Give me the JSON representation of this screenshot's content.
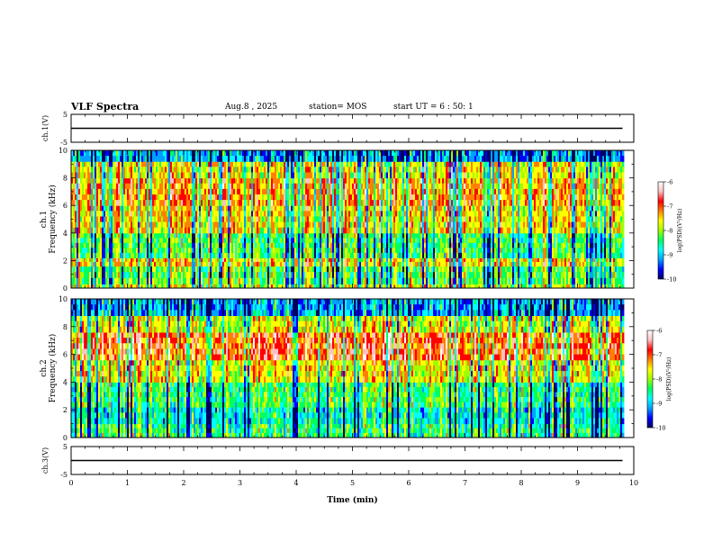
{
  "header": {
    "title": "VLF Spectra",
    "date": "Aug.8 , 2025",
    "station": "station= MOS",
    "start": "start UT = 6 : 50: 1"
  },
  "chart_data": [
    {
      "type": "line",
      "ylabel": "ch.1(V)",
      "ylim": [
        -5,
        5
      ],
      "yticks": [
        5,
        -5
      ],
      "x": [
        0,
        9.8
      ],
      "y": [
        0,
        0
      ],
      "xlim": [
        0,
        10
      ]
    },
    {
      "type": "heatmap",
      "ylabel": "ch.1 Frequency (kHz)",
      "ylim": [
        0,
        10
      ],
      "yticks": [
        0,
        2,
        4,
        6,
        8,
        10
      ],
      "xlim": [
        0,
        10
      ],
      "data_xmax": 9.8,
      "bands": [
        {
          "f0": 0.0,
          "f1": 0.3,
          "level": 0.55
        },
        {
          "f0": 0.3,
          "f1": 1.6,
          "level": 0.45
        },
        {
          "f0": 1.6,
          "f1": 2.2,
          "level": 0.62
        },
        {
          "f0": 2.2,
          "f1": 4.0,
          "level": 0.42
        },
        {
          "f0": 4.0,
          "f1": 6.0,
          "level": 0.6
        },
        {
          "f0": 6.0,
          "f1": 8.0,
          "level": 0.68
        },
        {
          "f0": 8.0,
          "f1": 9.2,
          "level": 0.58
        },
        {
          "f0": 9.2,
          "f1": 10.0,
          "level": 0.22
        }
      ],
      "colorbar": {
        "label": "log(PSD)(V²/Hz)",
        "min": -10,
        "max": -6,
        "ticks": [
          -6,
          -7,
          -8,
          -9,
          -10
        ]
      }
    },
    {
      "type": "heatmap",
      "ylabel": "ch.2 Frequency (kHz)",
      "ylim": [
        0,
        10
      ],
      "yticks": [
        0,
        2,
        4,
        6,
        8,
        10
      ],
      "xlim": [
        0,
        10
      ],
      "data_xmax": 9.8,
      "bands": [
        {
          "f0": 0.0,
          "f1": 1.0,
          "level": 0.38
        },
        {
          "f0": 1.0,
          "f1": 2.2,
          "level": 0.3
        },
        {
          "f0": 2.2,
          "f1": 4.0,
          "level": 0.4
        },
        {
          "f0": 4.0,
          "f1": 5.6,
          "level": 0.58
        },
        {
          "f0": 5.6,
          "f1": 7.6,
          "level": 0.76
        },
        {
          "f0": 7.6,
          "f1": 8.8,
          "level": 0.55
        },
        {
          "f0": 8.8,
          "f1": 10.0,
          "level": 0.22
        }
      ],
      "colorbar": {
        "label": "log(PSD)(V²/Hz)",
        "min": -10,
        "max": -6,
        "ticks": [
          -6,
          -7,
          -8,
          -9,
          -10
        ]
      }
    },
    {
      "type": "line",
      "ylabel": "ch.3(V)",
      "ylim": [
        -5,
        5
      ],
      "yticks": [
        5,
        -5
      ],
      "x": [
        0,
        9.8
      ],
      "y": [
        0,
        0
      ],
      "xlim": [
        0,
        10
      ],
      "xlabel": "Time (min)",
      "xticks": [
        0,
        1,
        2,
        3,
        4,
        5,
        6,
        7,
        8,
        9,
        10
      ]
    }
  ],
  "colors": {
    "colormap": [
      "#000060",
      "#0000ff",
      "#00a0ff",
      "#00ffff",
      "#00ff60",
      "#a0ff00",
      "#ffff00",
      "#ff8000",
      "#ff0000",
      "#ffc0c0",
      "#ffffff"
    ]
  }
}
